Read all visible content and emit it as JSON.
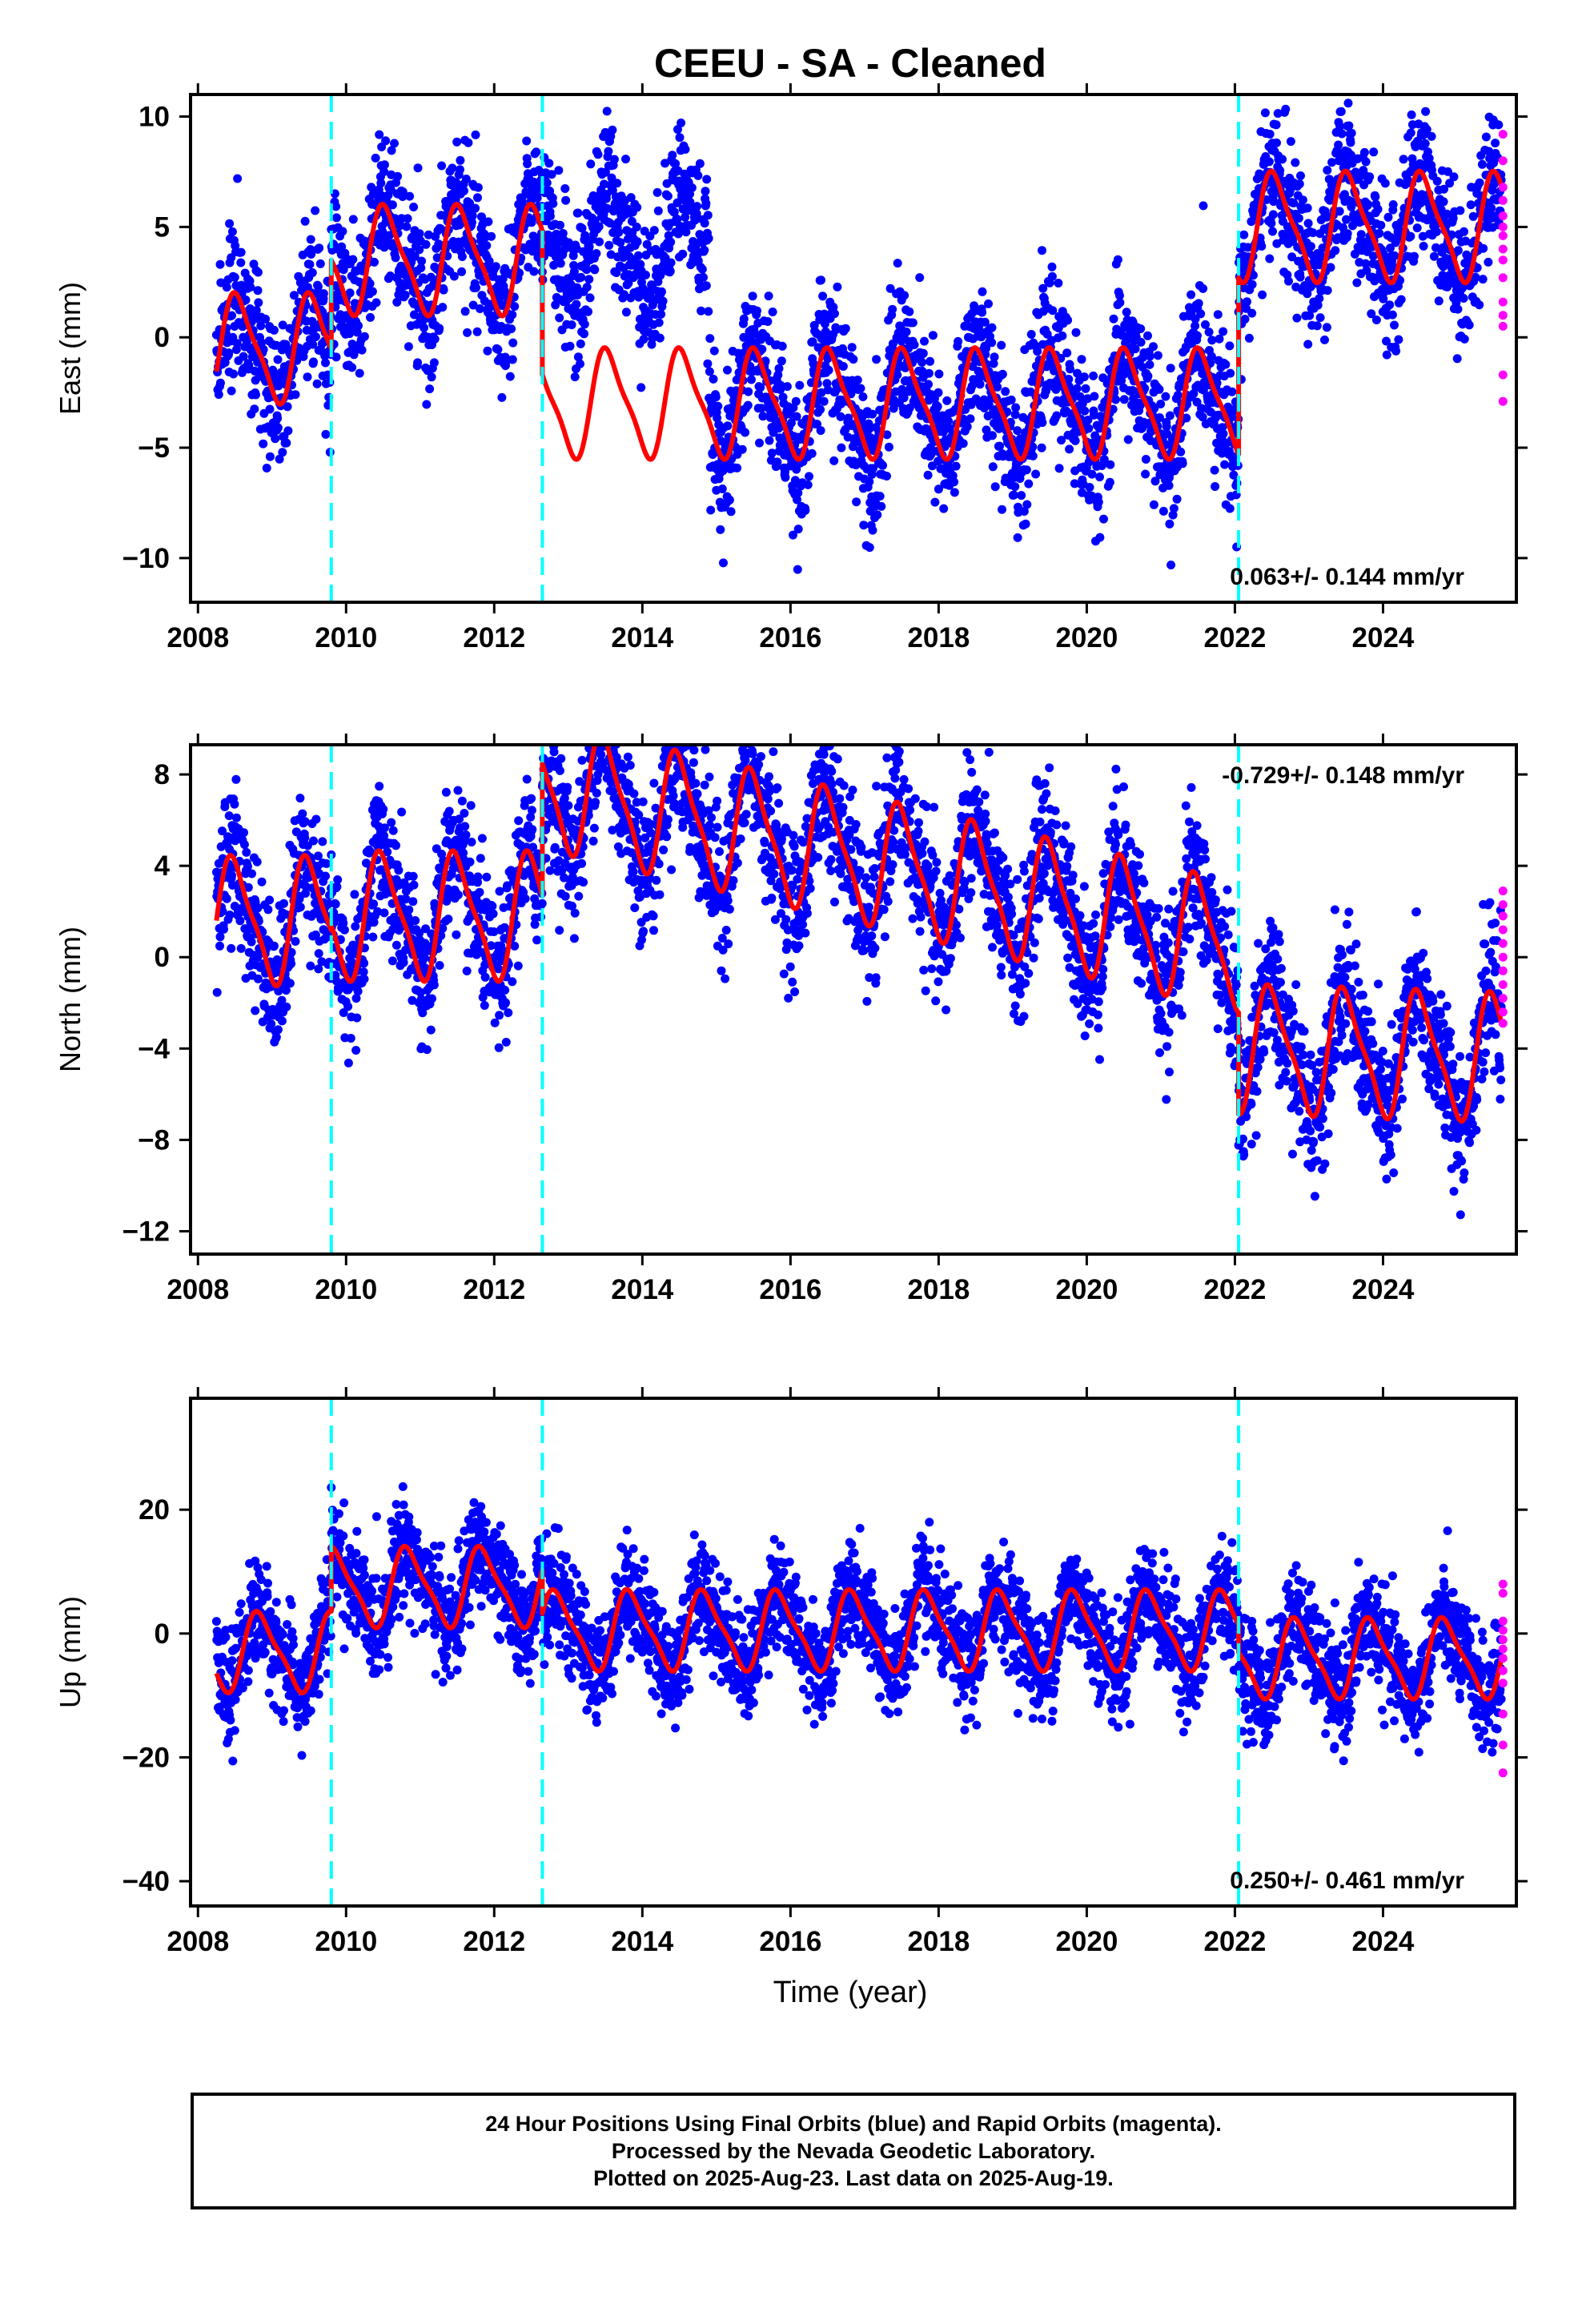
{
  "title": "CEEU  - SA - Cleaned",
  "xlabel": "Time (year)",
  "footer": {
    "line1": "24 Hour Positions Using Final Orbits (blue) and Rapid Orbits (magenta).",
    "line2": "Processed by the Nevada Geodetic Laboratory.",
    "line3": "Plotted on 2025-Aug-23. Last data on 2025-Aug-19."
  },
  "colors": {
    "final_orbits": "#0000ff",
    "rapid_orbits": "#ff00ff",
    "model_fit": "#ff0000",
    "offsets": "#00ffff"
  },
  "chart_data": [
    {
      "type": "scatter",
      "panel": "east",
      "ylabel": "East (mm)",
      "xlim": [
        2007.9,
        2025.8
      ],
      "ylim": [
        -12,
        11
      ],
      "xticks": [
        2008,
        2010,
        2012,
        2014,
        2016,
        2018,
        2020,
        2022,
        2024
      ],
      "yticks": [
        10,
        5,
        0,
        -5,
        -10
      ],
      "velocity_label": "0.063+/- 0.144 mm/yr",
      "velocity_label_position": "bottom-right",
      "offset_epochs": [
        2009.8,
        2012.65,
        2022.05
      ],
      "segments": [
        {
          "start": 2008.25,
          "end": 2009.8,
          "base": -0.5,
          "amp": 2.3,
          "phase": 0.3
        },
        {
          "start": 2009.8,
          "end": 2012.65,
          "base": 3.5,
          "amp": 2.3,
          "phase": 0.3
        },
        {
          "start": 2012.65,
          "end": 2022.05,
          "base": -3.0,
          "amp": 2.3,
          "phase": 0.3,
          "scatter_override": {
            "start": 2012.65,
            "end": 2014.9,
            "base": 4.3
          }
        },
        {
          "start": 2022.05,
          "end": 2025.6,
          "base": 5.0,
          "amp": 2.3,
          "phase": 0.3
        }
      ],
      "scatter_sigma": 1.6,
      "rapid_points": [
        9.2,
        8.0,
        6.8,
        6.2,
        5.5,
        5.0,
        4.6,
        4.0,
        3.5,
        2.7,
        1.6,
        1.0,
        0.5,
        -1.7,
        -2.9
      ]
    },
    {
      "type": "scatter",
      "panel": "north",
      "ylabel": "North (mm)",
      "xlim": [
        2007.9,
        2025.8
      ],
      "ylim": [
        -13,
        9.3
      ],
      "xticks": [
        2008,
        2010,
        2012,
        2014,
        2016,
        2018,
        2020,
        2022,
        2024
      ],
      "yticks": [
        8,
        4,
        0,
        -4,
        -8,
        -12
      ],
      "velocity_label": "-0.729+/- 0.148 mm/yr",
      "velocity_label_position": "top-right",
      "offset_epochs": [
        2009.8,
        2012.65,
        2022.05
      ],
      "segments": [
        {
          "start": 2008.25,
          "end": 2009.8,
          "base": 1.6,
          "amp": 2.6,
          "phase": 0.25,
          "trend": 0.0
        },
        {
          "start": 2009.8,
          "end": 2012.65,
          "base": 1.8,
          "amp": 2.6,
          "phase": 0.25,
          "trend": 0.0
        },
        {
          "start": 2012.65,
          "end": 2022.05,
          "base": 4.0,
          "amp": 2.6,
          "phase": 0.25,
          "trend": -0.76
        },
        {
          "start": 2022.05,
          "end": 2025.6,
          "base": -4.2,
          "amp": 2.6,
          "phase": 0.25,
          "trend": -0.1
        }
      ],
      "scatter_sigma": 1.5,
      "rapid_points": [
        2.9,
        2.3,
        1.8,
        1.2,
        0.6,
        0.0,
        -0.6,
        -1.2,
        -1.8,
        -2.4,
        -2.9
      ]
    },
    {
      "type": "scatter",
      "panel": "up",
      "ylabel": "Up (mm)",
      "xlim": [
        2007.9,
        2025.8
      ],
      "ylim": [
        -44,
        38
      ],
      "xticks": [
        2008,
        2010,
        2012,
        2014,
        2016,
        2018,
        2020,
        2022,
        2024
      ],
      "yticks": [
        20,
        0,
        -20,
        -40
      ],
      "velocity_label": "0.250+/- 0.461 mm/yr",
      "velocity_label_position": "bottom-right",
      "offset_epochs": [
        2009.8,
        2012.65,
        2022.05
      ],
      "segments": [
        {
          "start": 2008.25,
          "end": 2009.8,
          "base": -3.0,
          "amp": 6.0,
          "phase": 0.6
        },
        {
          "start": 2009.8,
          "end": 2012.65,
          "base": 7.5,
          "amp": 6.0,
          "phase": 0.6
        },
        {
          "start": 2012.65,
          "end": 2022.05,
          "base": 0.5,
          "amp": 6.0,
          "phase": 0.6
        },
        {
          "start": 2022.05,
          "end": 2025.6,
          "base": -4.0,
          "amp": 6.0,
          "phase": 0.6
        }
      ],
      "scatter_sigma": 4.2,
      "rapid_points": [
        8.0,
        6.5,
        2.0,
        0.5,
        -1.0,
        -2.5,
        -4.0,
        -6.0,
        -8.0,
        -13.0,
        -18.0,
        -22.5
      ]
    }
  ]
}
